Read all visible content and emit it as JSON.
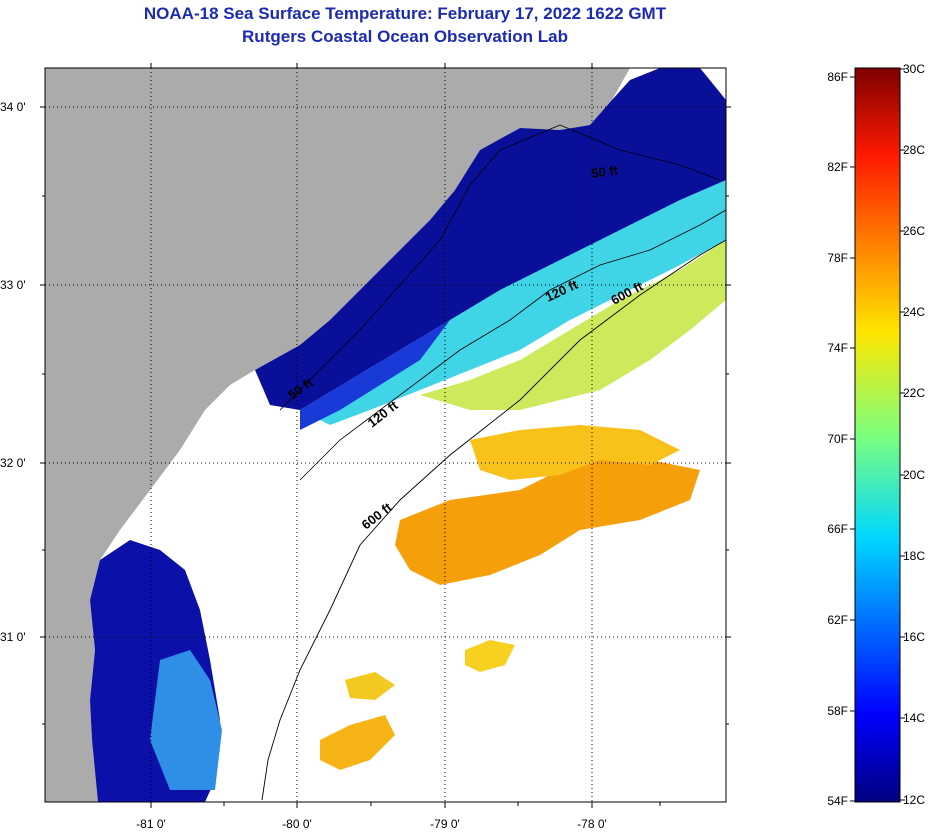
{
  "title": {
    "line1": "NOAA-18 Sea Surface Temperature:  February 17, 2022 1622 GMT",
    "line2": "Rutgers Coastal Ocean Observation Lab"
  },
  "map": {
    "lat_labels": [
      "34 0'",
      "33 0'",
      "32 0'",
      "31 0'"
    ],
    "lon_labels": [
      "-81 0'",
      "-80 0'",
      "-79 0'",
      "-78 0'"
    ],
    "contour_labels": [
      "50 ft",
      "120 ft",
      "600 ft",
      "50 ft",
      "120 ft",
      "600 ft"
    ],
    "colors": {
      "land": "#ababab",
      "cloud": "#ffffff",
      "cold": "#0a0f9a",
      "warm": "#f5a00a"
    }
  },
  "colorbar": {
    "fahrenheit": [
      "86F",
      "82F",
      "78F",
      "74F",
      "70F",
      "66F",
      "62F",
      "58F",
      "54F"
    ],
    "celsius": [
      "30C",
      "28C",
      "26C",
      "24C",
      "22C",
      "20C",
      "18C",
      "16C",
      "14C",
      "12C"
    ]
  }
}
